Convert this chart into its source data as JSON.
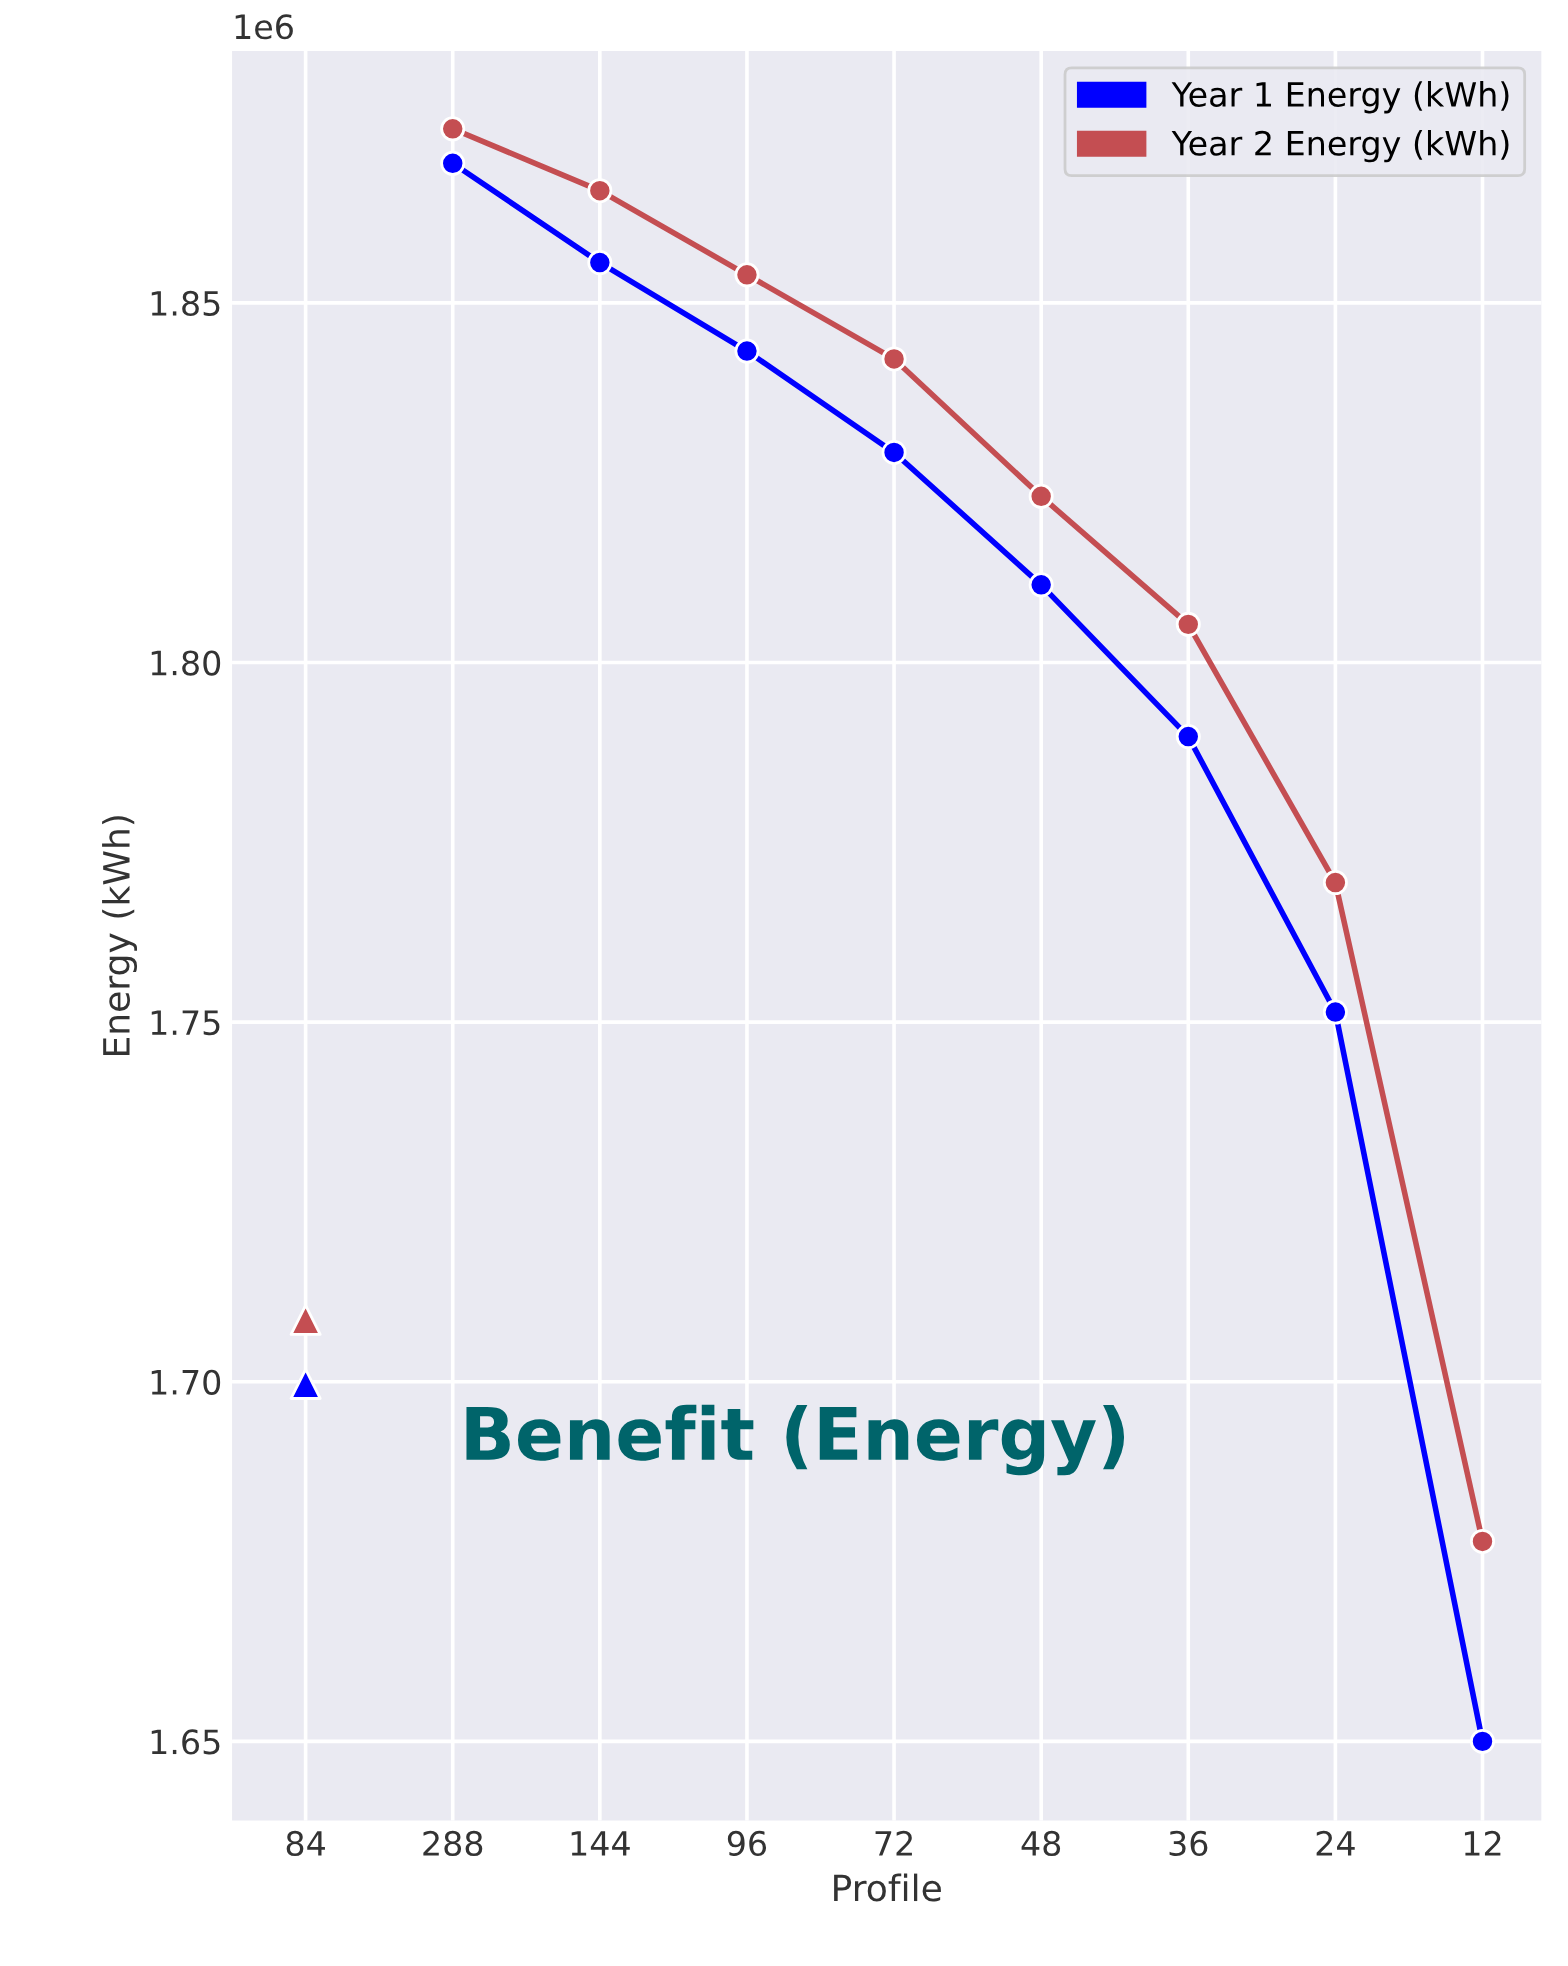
{
  "chart_data": {
    "type": "line",
    "xlabel": "Profile",
    "ylabel": "Energy (kWh)",
    "categories": [
      "84",
      "288",
      "144",
      "96",
      "72",
      "48",
      "36",
      "24",
      "12"
    ],
    "series": [
      {
        "name": "Year 1 Energy (kWh)",
        "color": "#0000ff",
        "values": [
          null,
          1.8694,
          1.8556,
          1.8433,
          1.8292,
          1.8108,
          1.7897,
          1.7514,
          1.65
        ]
      },
      {
        "name": "Year 2 Energy (kWh)",
        "color": "#c44e52",
        "values": [
          null,
          1.8742,
          1.8656,
          1.8539,
          1.8422,
          1.8231,
          1.8053,
          1.7694,
          1.6778
        ]
      },
      {
        "type": "scatter",
        "marker": "triangle",
        "color": "#0000ff",
        "values": [
          1.6997,
          null,
          null,
          null,
          null,
          null,
          null,
          null,
          null
        ]
      },
      {
        "type": "scatter",
        "marker": "triangle",
        "color": "#c44e52",
        "values": [
          1.7086,
          null,
          null,
          null,
          null,
          null,
          null,
          null,
          null
        ]
      }
    ],
    "marker": "circle",
    "ylim": [
      1.639,
      1.885
    ],
    "yticks": [
      {
        "value": 1.65,
        "label": "1.65"
      },
      {
        "value": 1.7,
        "label": "1.70"
      },
      {
        "value": 1.75,
        "label": "1.75"
      },
      {
        "value": 1.8,
        "label": "1.80"
      },
      {
        "value": 1.85,
        "label": "1.85"
      }
    ],
    "grid": true,
    "legend": "top right",
    "annotations": [
      "1e6",
      "Benefit (Energy)"
    ]
  }
}
